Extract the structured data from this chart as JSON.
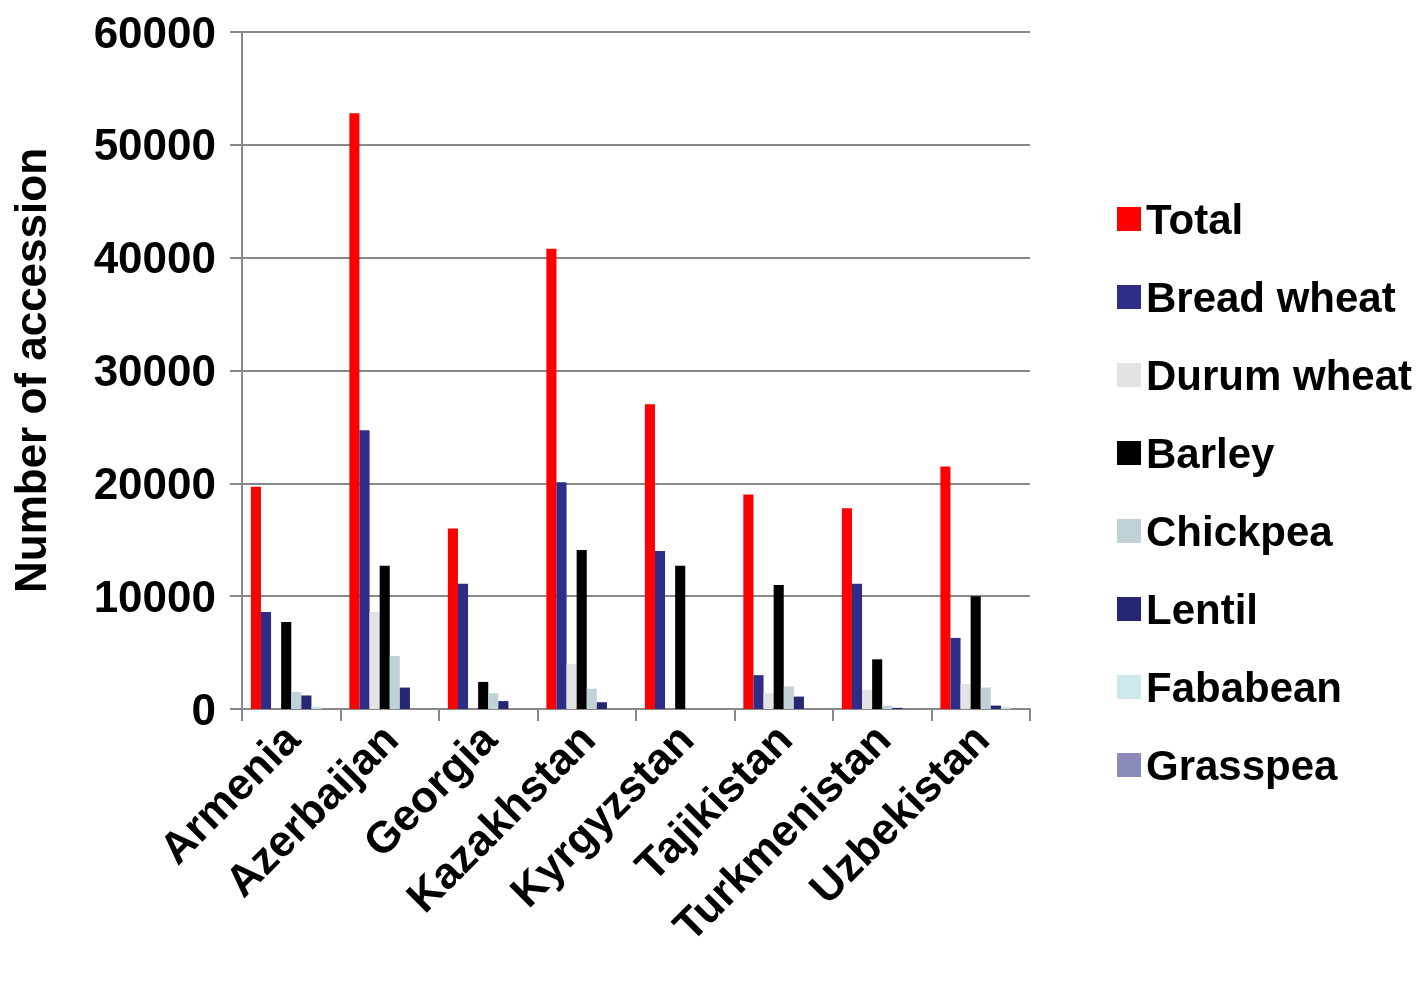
{
  "chart_data": {
    "type": "bar",
    "ylabel": "Number of accession",
    "categories": [
      "Armenia",
      "Azerbaijan",
      "Georgia",
      "Kazakhstan",
      "Kyrgyzstan",
      "Tajikistan",
      "Turkmenistan",
      "Uzbekistan"
    ],
    "series": [
      {
        "name": "Total",
        "color": "#ff0000",
        "values": [
          19700,
          52800,
          16000,
          40800,
          27000,
          19000,
          17800,
          21500
        ]
      },
      {
        "name": "Bread wheat",
        "color": "#2e2e88",
        "values": [
          8600,
          24700,
          11100,
          20100,
          14000,
          3000,
          11100,
          6300
        ]
      },
      {
        "name": "Durum wheat",
        "color": "#e3e3e3",
        "values": [
          0,
          8600,
          0,
          4000,
          0,
          1400,
          1700,
          2200
        ]
      },
      {
        "name": "Barley",
        "color": "#000000",
        "values": [
          7700,
          12700,
          2400,
          14100,
          12700,
          11000,
          4400,
          10000
        ]
      },
      {
        "name": "Chickpea",
        "color": "#c0d2d6",
        "values": [
          1500,
          4700,
          1400,
          1800,
          0,
          2000,
          300,
          1900
        ]
      },
      {
        "name": "Lentil",
        "color": "#262673",
        "values": [
          1200,
          1900,
          700,
          600,
          0,
          1100,
          100,
          300
        ]
      },
      {
        "name": "Fababean",
        "color": "#cde8ea",
        "values": [
          200,
          0,
          0,
          0,
          0,
          0,
          0,
          200
        ]
      },
      {
        "name": "Grasspea",
        "color": "#8a8abb",
        "values": [
          0,
          null,
          0,
          0,
          null,
          0,
          0,
          0
        ]
      }
    ],
    "ylim": [
      0,
      60000
    ],
    "yticks": [
      0,
      10000,
      20000,
      30000,
      40000,
      50000,
      60000
    ],
    "grid": "y",
    "legend": "right"
  }
}
